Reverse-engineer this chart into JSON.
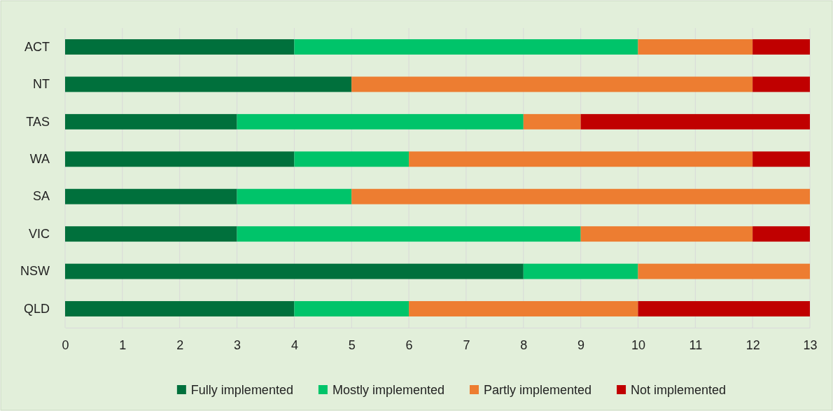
{
  "chart_data": {
    "type": "bar",
    "orientation": "horizontal",
    "stacked": true,
    "categories": [
      "ACT",
      "NT",
      "TAS",
      "WA",
      "SA",
      "VIC",
      "NSW",
      "QLD"
    ],
    "series": [
      {
        "name": "Fully implemented",
        "color": "#00703c",
        "values": [
          4,
          5,
          3,
          4,
          3,
          3,
          8,
          4
        ]
      },
      {
        "name": "Mostly implemented",
        "color": "#00c46a",
        "values": [
          6,
          0,
          5,
          2,
          2,
          6,
          2,
          2
        ]
      },
      {
        "name": "Partly implemented",
        "color": "#ed7d31",
        "values": [
          2,
          7,
          1,
          6,
          8,
          3,
          3,
          4
        ]
      },
      {
        "name": "Not implemented",
        "color": "#c00000",
        "values": [
          1,
          1,
          4,
          1,
          0,
          1,
          0,
          3
        ]
      }
    ],
    "xlim": [
      0,
      13
    ],
    "xticks": [
      0,
      1,
      2,
      3,
      4,
      5,
      6,
      7,
      8,
      9,
      10,
      11,
      12,
      13
    ],
    "grid": "x",
    "legend": "bottom"
  }
}
